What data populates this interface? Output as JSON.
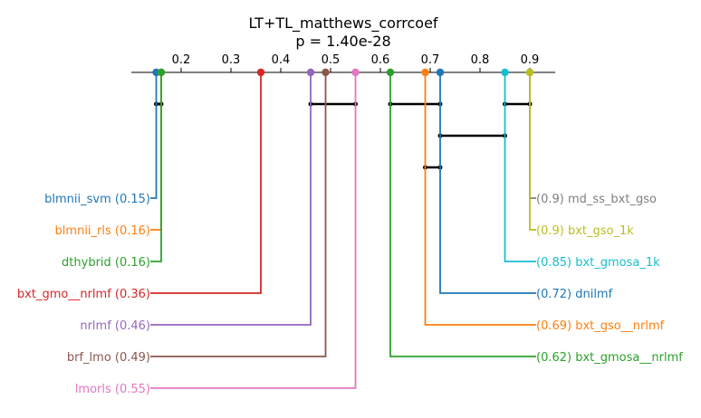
{
  "chart_data": {
    "type": "critical-difference",
    "title": "LT+TL_matthews_corrcoef",
    "subtitle": "p = 1.40e-28",
    "xlim": [
      0.1,
      0.95
    ],
    "ticks": [
      0.2,
      0.3,
      0.4,
      0.5,
      0.6,
      0.7,
      0.8,
      0.9
    ],
    "tick_labels": [
      "0.2",
      "0.3",
      "0.4",
      "0.5",
      "0.6",
      "0.7",
      "0.8",
      "0.9"
    ],
    "methods": [
      {
        "name": "blmnii_svm",
        "value": 0.15,
        "label": "blmnii_svm (0.15)",
        "side": "left",
        "color": "#1f77b4"
      },
      {
        "name": "blmnii_rls",
        "value": 0.16,
        "label": "blmnii_rls (0.16)",
        "side": "left",
        "color": "#ff7f0e"
      },
      {
        "name": "dthybrid",
        "value": 0.16,
        "label": "dthybrid (0.16)",
        "side": "left",
        "color": "#2ca02c"
      },
      {
        "name": "bxt_gmo__nrlmf",
        "value": 0.36,
        "label": "bxt_gmo__nrlmf (0.36)",
        "side": "left",
        "color": "#d62728"
      },
      {
        "name": "nrlmf",
        "value": 0.46,
        "label": "nrlmf (0.46)",
        "side": "left",
        "color": "#9467bd"
      },
      {
        "name": "brf_lmo",
        "value": 0.49,
        "label": "brf_lmo (0.49)",
        "side": "left",
        "color": "#8c564b"
      },
      {
        "name": "lmorls",
        "value": 0.55,
        "label": "lmorls (0.55)",
        "side": "left",
        "color": "#e377c2"
      },
      {
        "name": "md_ss_bxt_gso",
        "value": 0.9,
        "label": "(0.9) md_ss_bxt_gso",
        "side": "right",
        "color": "#7f7f7f"
      },
      {
        "name": "bxt_gso_1k",
        "value": 0.9,
        "label": "(0.9) bxt_gso_1k",
        "side": "right",
        "color": "#bcbd22"
      },
      {
        "name": "bxt_gmosa_1k",
        "value": 0.85,
        "label": "(0.85) bxt_gmosa_1k",
        "side": "right",
        "color": "#17becf"
      },
      {
        "name": "dnilmf",
        "value": 0.72,
        "label": "(0.72) dnilmf",
        "side": "right",
        "color": "#1f77b4"
      },
      {
        "name": "bxt_gso__nrlmf",
        "value": 0.69,
        "label": "(0.69) bxt_gso__nrlmf",
        "side": "right",
        "color": "#ff7f0e"
      },
      {
        "name": "bxt_gmosa__nrlmf",
        "value": 0.62,
        "label": "(0.62) bxt_gmosa__nrlmf",
        "side": "right",
        "color": "#2ca02c"
      }
    ],
    "cliques": [
      [
        0.15,
        0.16
      ],
      [
        0.46,
        0.55
      ],
      [
        0.62,
        0.72
      ],
      [
        0.85,
        0.9
      ],
      [
        0.72,
        0.85
      ],
      [
        0.69,
        0.72
      ]
    ]
  }
}
